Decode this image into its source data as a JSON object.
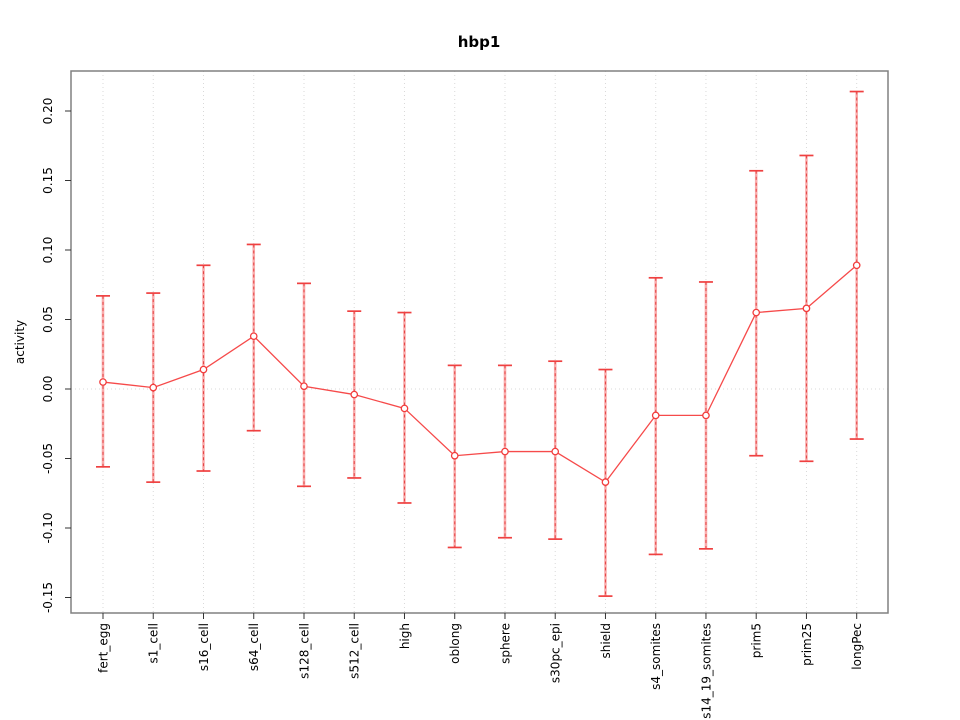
{
  "chart_data": {
    "type": "line",
    "title": "hbp1",
    "xlabel": "",
    "ylabel": "activity",
    "categories": [
      "fert_egg",
      "s1_cell",
      "s16_cell",
      "s64_cell",
      "s128_cell",
      "s512_cell",
      "high",
      "oblong",
      "sphere",
      "s30pc_epi",
      "shield",
      "s4_somites",
      "s14_19_somites",
      "prim5",
      "prim25",
      "longPec"
    ],
    "series": [
      {
        "name": "activity",
        "values": [
          0.005,
          0.001,
          0.014,
          0.038,
          0.002,
          -0.004,
          -0.014,
          -0.048,
          -0.045,
          -0.045,
          -0.067,
          -0.019,
          -0.019,
          0.055,
          0.058,
          0.089
        ],
        "error_upper": [
          0.067,
          0.069,
          0.089,
          0.104,
          0.076,
          0.056,
          0.055,
          0.017,
          0.017,
          0.02,
          0.014,
          0.08,
          0.077,
          0.157,
          0.168,
          0.214
        ],
        "error_lower": [
          -0.056,
          -0.067,
          -0.059,
          -0.03,
          -0.07,
          -0.064,
          -0.082,
          -0.114,
          -0.107,
          -0.108,
          -0.149,
          -0.119,
          -0.115,
          -0.048,
          -0.052,
          -0.036
        ]
      }
    ],
    "yticks": [
      -0.15,
      -0.1,
      -0.05,
      0.0,
      0.05,
      0.1,
      0.15,
      0.2
    ],
    "ylim": [
      -0.161,
      0.229
    ],
    "grid": "vertical-dotted-per-category",
    "zero_reference_line": true,
    "legend": "none",
    "marker": "open-circle",
    "colors": {
      "line": "#f64a4a",
      "marker_stroke": "#f23c3c",
      "marker_fill": "#ffffff",
      "error_bar": "#f99999",
      "error_bar_dash": "#e03535",
      "error_cap": "#ef4040",
      "grid": "#d9d9d9",
      "border": "#808080",
      "text": "#000000",
      "background": "#ffffff"
    }
  }
}
